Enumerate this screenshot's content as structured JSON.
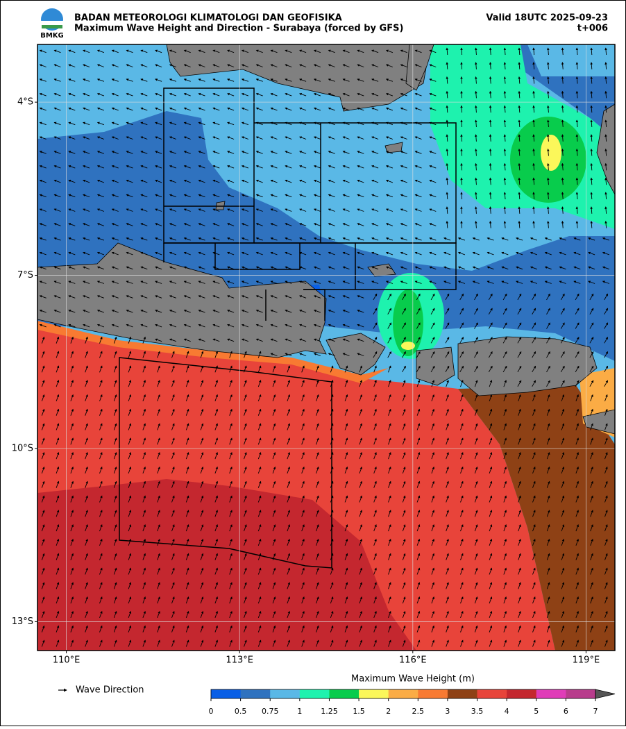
{
  "header": {
    "logo_text": "BMKG",
    "agency": "BADAN METEOROLOGI KLIMATOLOGI DAN GEOFISIKA",
    "title": "Maximum Wave Height and Direction - Surabaya (forced by GFS)",
    "valid": "Valid 18UTC 2025-09-23",
    "lead": "t+006"
  },
  "map": {
    "xlim": [
      109.5,
      119.5
    ],
    "ylim": [
      -13.5,
      -3
    ],
    "xticks": [
      {
        "value": 110,
        "label": "110°E"
      },
      {
        "value": 113,
        "label": "113°E"
      },
      {
        "value": 116,
        "label": "116°E"
      },
      {
        "value": 119,
        "label": "119°E"
      }
    ],
    "yticks": [
      {
        "value": -4,
        "label": "4°S"
      },
      {
        "value": -7,
        "label": "7°S"
      },
      {
        "value": -10,
        "label": "10°S"
      },
      {
        "value": -13,
        "label": "13°S"
      }
    ],
    "grid": true
  },
  "legend": {
    "arrow_label": "Wave Direction"
  },
  "colorbar": {
    "label": "Maximum Wave Height (m)",
    "ticks": [
      0,
      0.5,
      0.75,
      1,
      1.25,
      1.5,
      2,
      2.5,
      3,
      3.5,
      4,
      5,
      6,
      7
    ],
    "colors": [
      "#0a5fe6",
      "#2f72bf",
      "#5ab8e6",
      "#1ef2ae",
      "#08cc4c",
      "#fbf75a",
      "#fbac45",
      "#f87a32",
      "#8e4115",
      "#e8443a",
      "#c4272f",
      "#e03cb8",
      "#b83c8c"
    ],
    "extend_color": "#555555"
  }
}
